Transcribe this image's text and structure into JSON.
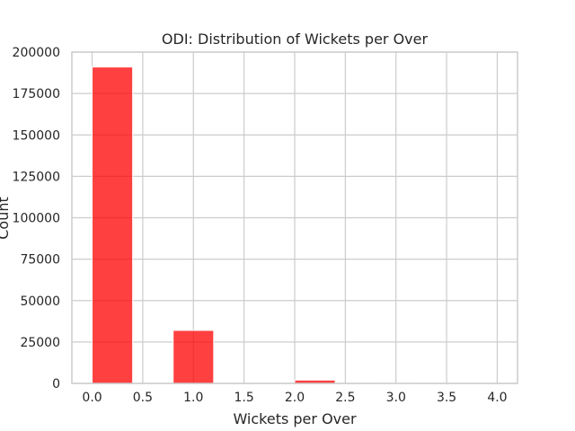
{
  "chart_data": {
    "type": "bar",
    "title": "ODI: Distribution of Wickets per Over",
    "xlabel": "Wickets per Over",
    "ylabel": "Count",
    "xlim": [
      -0.2,
      4.2
    ],
    "ylim": [
      0,
      200000
    ],
    "xticks": [
      "0.0",
      "0.5",
      "1.0",
      "1.5",
      "2.0",
      "2.5",
      "3.0",
      "3.5",
      "4.0"
    ],
    "xtick_values": [
      0,
      0.5,
      1.0,
      1.5,
      2.0,
      2.5,
      3.0,
      3.5,
      4.0
    ],
    "yticks": [
      "0",
      "25000",
      "50000",
      "75000",
      "100000",
      "125000",
      "150000",
      "175000",
      "200000"
    ],
    "ytick_values": [
      0,
      25000,
      50000,
      75000,
      100000,
      125000,
      150000,
      175000,
      200000
    ],
    "grid": true,
    "bar_color": "#ff0000",
    "bins": [
      {
        "start": 0.0,
        "end": 0.4,
        "value": 191000
      },
      {
        "start": 0.4,
        "end": 0.8,
        "value": 0
      },
      {
        "start": 0.8,
        "end": 1.2,
        "value": 32000
      },
      {
        "start": 1.2,
        "end": 1.6,
        "value": 0
      },
      {
        "start": 1.6,
        "end": 2.0,
        "value": 0
      },
      {
        "start": 2.0,
        "end": 2.4,
        "value": 2000
      },
      {
        "start": 2.4,
        "end": 2.8,
        "value": 0
      },
      {
        "start": 2.8,
        "end": 3.2,
        "value": 150
      },
      {
        "start": 3.2,
        "end": 3.6,
        "value": 0
      },
      {
        "start": 3.6,
        "end": 4.0,
        "value": 10
      }
    ]
  }
}
